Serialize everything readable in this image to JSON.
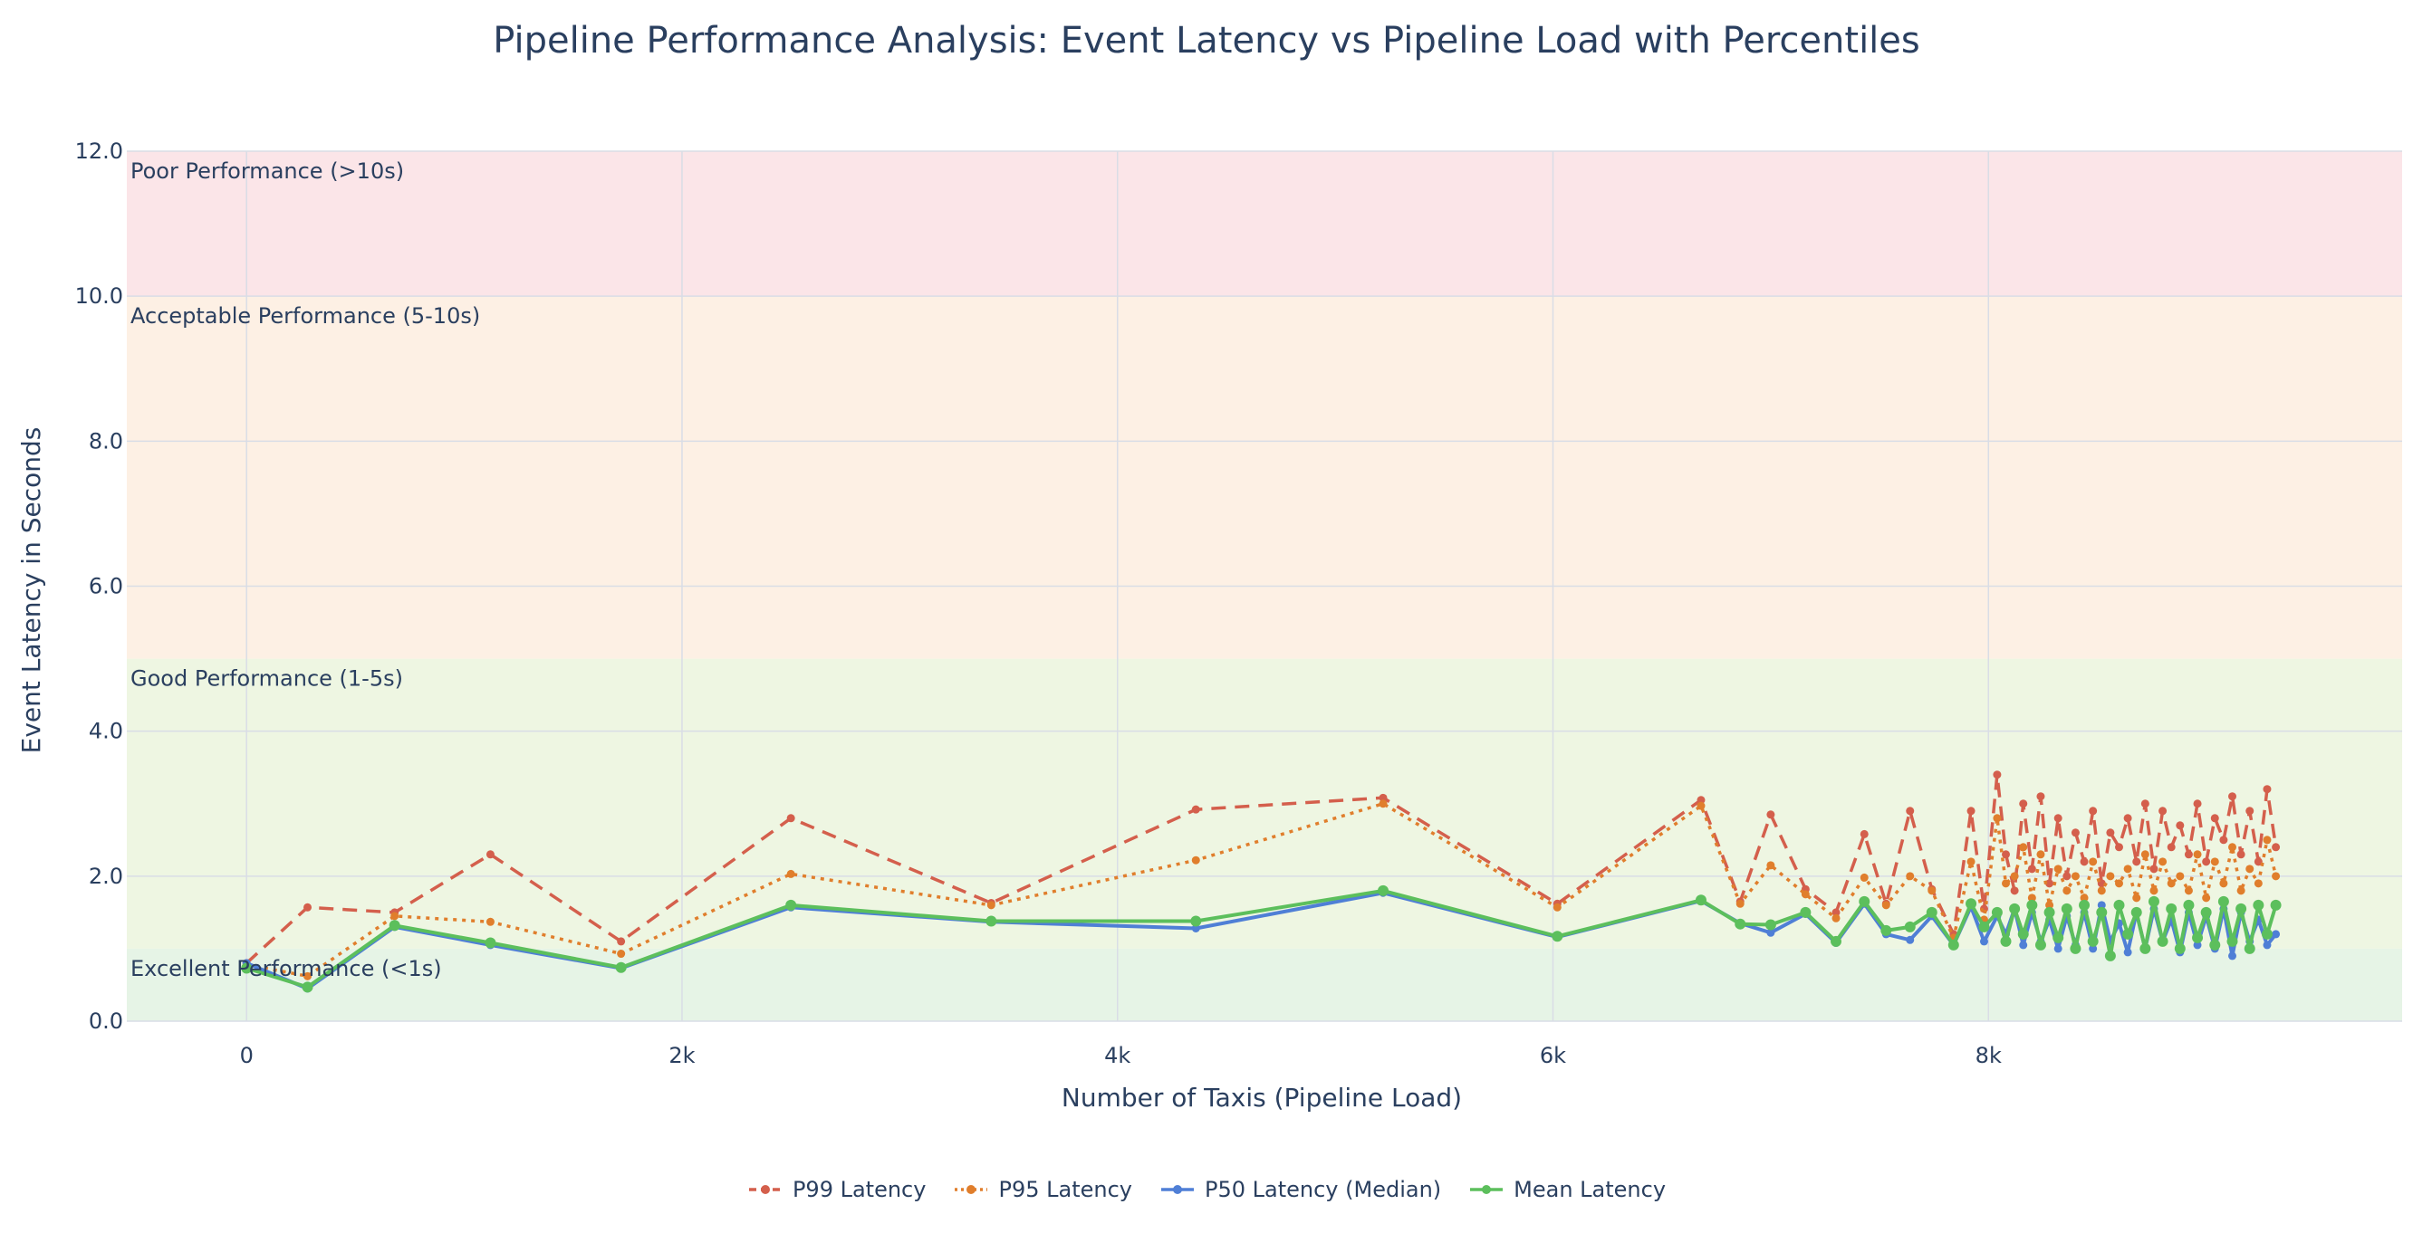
{
  "chart_data": {
    "type": "line",
    "title": "Pipeline Performance Analysis: Event Latency vs Pipeline Load with Percentiles",
    "xlabel": "Number of Taxis (Pipeline Load)",
    "ylabel": "Event Latency in Seconds",
    "xlim": [
      -550,
      9900
    ],
    "ylim": [
      0,
      12
    ],
    "x_ticks": [
      0,
      2000,
      4000,
      6000,
      8000
    ],
    "x_tick_labels": [
      "0",
      "2k",
      "4k",
      "6k",
      "8k"
    ],
    "y_ticks": [
      0,
      2,
      4,
      6,
      8,
      10,
      12
    ],
    "y_tick_labels": [
      "0.0",
      "2.0",
      "4.0",
      "6.0",
      "8.0",
      "10.0",
      "12.0"
    ],
    "grid": true,
    "legend_position": "bottom-center",
    "bands": [
      {
        "label": "Excellent Performance (<1s)",
        "y0": 0,
        "y1": 1,
        "color": "#e6f4e6"
      },
      {
        "label": "Good Performance (1-5s)",
        "y0": 1,
        "y1": 5,
        "color": "#eef6e2"
      },
      {
        "label": "Acceptable Performance (5-10s)",
        "y0": 5,
        "y1": 10,
        "color": "#fdf0e4"
      },
      {
        "label": "Poor Performance (>10s)",
        "y0": 10,
        "y1": 12,
        "color": "#fbe5e8"
      }
    ],
    "x": [
      0,
      280,
      680,
      1120,
      1720,
      2500,
      3420,
      4360,
      5220,
      6020,
      6680,
      6860,
      7000,
      7160,
      7300,
      7430,
      7530,
      7640,
      7740,
      7840,
      7920,
      7980,
      8040,
      8080,
      8120,
      8160,
      8200,
      8240,
      8280,
      8320,
      8360,
      8400,
      8440,
      8480,
      8520,
      8560,
      8600,
      8640,
      8680,
      8720,
      8760,
      8800,
      8840,
      8880,
      8920,
      8960,
      9000,
      9040,
      9080,
      9120,
      9160,
      9200,
      9240,
      9280,
      9320
    ],
    "series": [
      {
        "name": "P99 Latency",
        "color": "#d45f4c",
        "dash": "16,10",
        "values": [
          0.8,
          1.57,
          1.5,
          2.3,
          1.1,
          2.8,
          1.63,
          2.92,
          3.08,
          1.62,
          3.05,
          1.65,
          2.85,
          1.82,
          1.5,
          2.58,
          1.62,
          2.9,
          1.82,
          1.2,
          2.9,
          1.55,
          3.4,
          2.3,
          1.8,
          3.0,
          2.1,
          3.1,
          1.9,
          2.8,
          2.0,
          2.6,
          2.2,
          2.9,
          1.9,
          2.6,
          2.4,
          2.8,
          2.2,
          3.0,
          2.1,
          2.9,
          2.4,
          2.7,
          2.3,
          3.0,
          2.2,
          2.8,
          2.5,
          3.1,
          2.3,
          2.9,
          2.2,
          3.2,
          2.4
        ]
      },
      {
        "name": "P95 Latency",
        "color": "#e07e2c",
        "dash": "4,6",
        "values": [
          0.78,
          0.62,
          1.45,
          1.37,
          0.93,
          2.03,
          1.6,
          2.22,
          3.0,
          1.57,
          2.97,
          1.62,
          2.15,
          1.75,
          1.42,
          1.98,
          1.6,
          2.0,
          1.8,
          1.15,
          2.2,
          1.4,
          2.8,
          1.9,
          2.0,
          2.4,
          1.7,
          2.3,
          1.6,
          2.1,
          1.8,
          2.0,
          1.7,
          2.2,
          1.8,
          2.0,
          1.9,
          2.1,
          1.7,
          2.3,
          1.8,
          2.2,
          1.9,
          2.0,
          1.8,
          2.3,
          1.7,
          2.2,
          1.9,
          2.4,
          1.8,
          2.1,
          1.9,
          2.5,
          2.0
        ]
      },
      {
        "name": "P50 Latency (Median)",
        "color": "#4f7fd6",
        "dash": "",
        "values": [
          0.8,
          0.45,
          1.3,
          1.05,
          0.73,
          1.57,
          1.37,
          1.28,
          1.77,
          1.16,
          1.66,
          1.35,
          1.22,
          1.48,
          1.08,
          1.62,
          1.2,
          1.12,
          1.45,
          1.05,
          1.58,
          1.1,
          1.45,
          1.2,
          1.55,
          1.05,
          1.5,
          1.1,
          1.4,
          1.0,
          1.45,
          1.05,
          1.5,
          1.0,
          1.6,
          1.1,
          1.35,
          0.95,
          1.5,
          1.0,
          1.55,
          1.1,
          1.4,
          0.95,
          1.5,
          1.05,
          1.45,
          1.0,
          1.55,
          0.9,
          1.5,
          1.1,
          1.4,
          1.05,
          1.2
        ]
      },
      {
        "name": "Mean Latency",
        "color": "#5cbf5c",
        "dash": "",
        "values": [
          0.73,
          0.47,
          1.32,
          1.08,
          0.74,
          1.6,
          1.38,
          1.38,
          1.8,
          1.17,
          1.67,
          1.34,
          1.33,
          1.5,
          1.1,
          1.65,
          1.25,
          1.3,
          1.5,
          1.05,
          1.62,
          1.3,
          1.5,
          1.1,
          1.55,
          1.2,
          1.6,
          1.05,
          1.5,
          1.15,
          1.55,
          1.0,
          1.6,
          1.1,
          1.5,
          0.9,
          1.6,
          1.2,
          1.5,
          1.0,
          1.65,
          1.1,
          1.55,
          1.0,
          1.6,
          1.15,
          1.5,
          1.05,
          1.65,
          1.1,
          1.55,
          1.0,
          1.6,
          1.2,
          1.6
        ]
      }
    ]
  }
}
